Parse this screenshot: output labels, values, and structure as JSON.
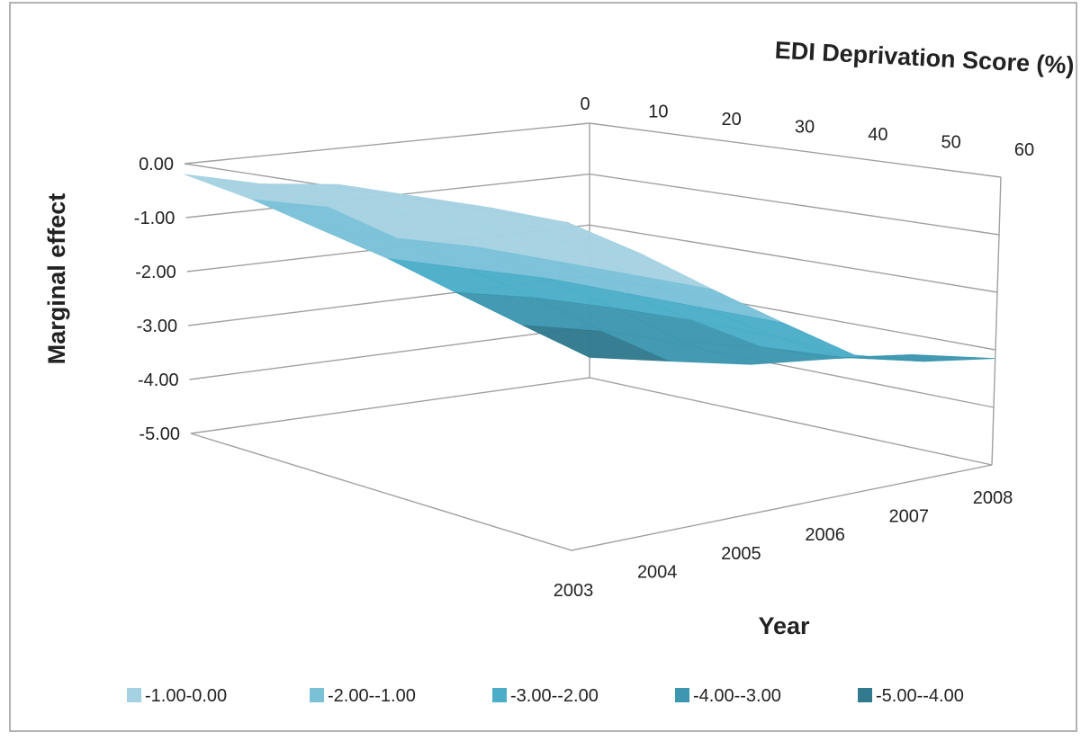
{
  "chart_data": {
    "type": "surface",
    "title": "",
    "xlabel": "Year",
    "ylabel": "Marginal effect",
    "zlabel": "EDI Deprivation Score (%)",
    "x": [
      "2003",
      "2004",
      "2005",
      "2006",
      "2007",
      "2008"
    ],
    "z": [
      "0",
      "10",
      "20",
      "30",
      "40",
      "50",
      "60"
    ],
    "y_ticks": [
      "0.00",
      "-1.00",
      "-2.00",
      "-3.00",
      "-4.00",
      "-5.00"
    ],
    "ylim": [
      -5,
      0
    ],
    "values": [
      [
        -0.2,
        -0.8,
        -1.5,
        -2.2,
        -3.0,
        -3.8,
        -4.6
      ],
      [
        -0.15,
        -0.7,
        -1.4,
        -2.1,
        -2.8,
        -3.6,
        -4.35
      ],
      [
        0.05,
        -0.6,
        -1.3,
        -2.0,
        -2.7,
        -3.5,
        -4.1
      ],
      [
        0.05,
        -0.6,
        -1.3,
        -2.0,
        -2.65,
        -3.3,
        -3.7
      ],
      [
        0.05,
        -0.6,
        -1.3,
        -2.0,
        -2.65,
        -3.2,
        -3.35
      ],
      [
        0.0,
        -0.6,
        -1.3,
        -2.0,
        -2.7,
        -3.0,
        -3.15
      ]
    ],
    "legend": [
      {
        "label": "-1.00-0.00",
        "color": "#a5d2e2"
      },
      {
        "label": "-2.00--1.00",
        "color": "#7ac1d8"
      },
      {
        "label": "-3.00--2.00",
        "color": "#4badc8"
      },
      {
        "label": "-4.00--3.00",
        "color": "#3d97b0"
      },
      {
        "label": "-5.00--4.00",
        "color": "#327a8e"
      }
    ],
    "legend_position": "bottom",
    "grid": true
  }
}
